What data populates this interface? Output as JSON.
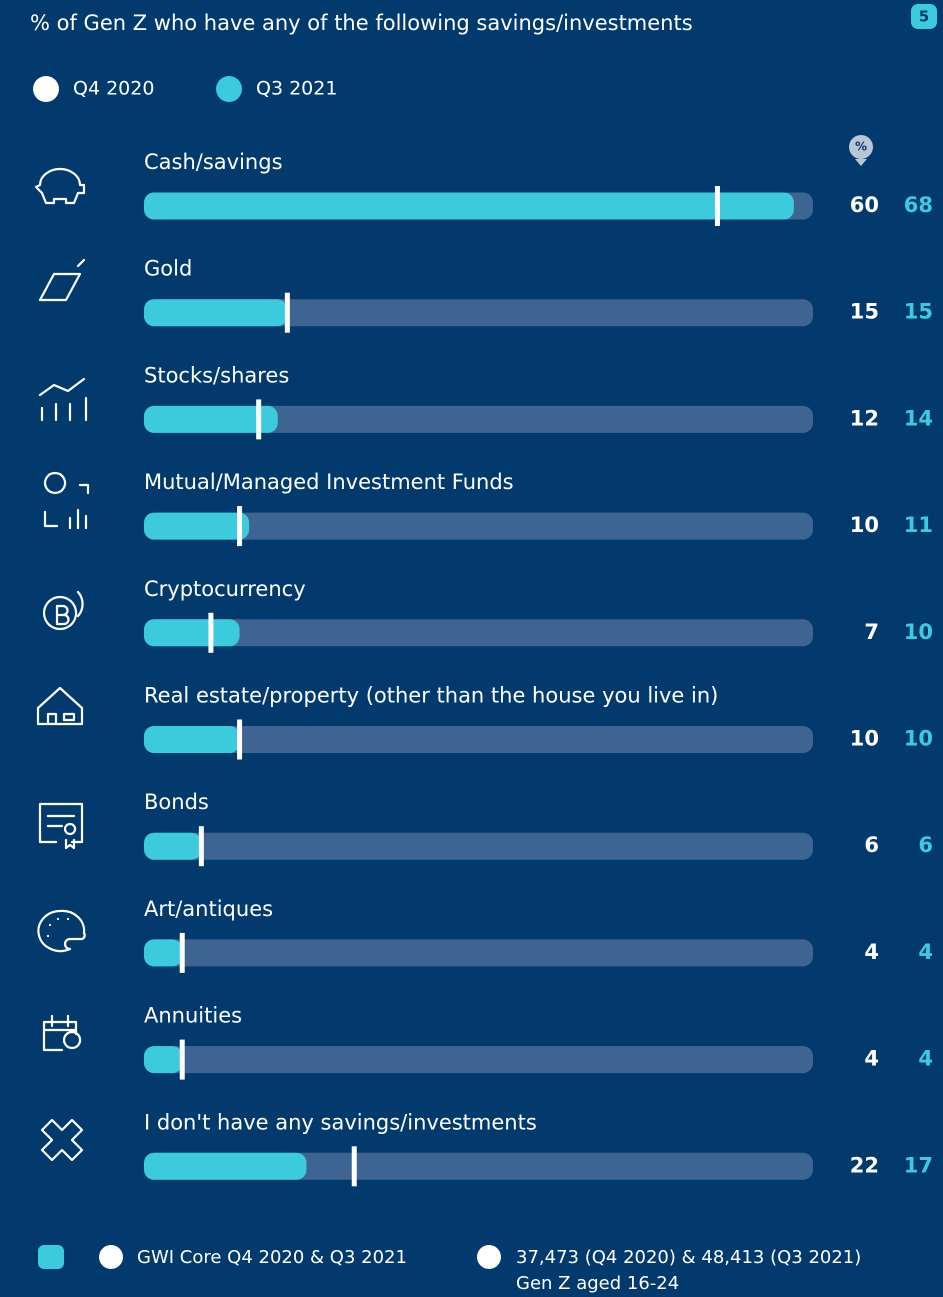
{
  "chart_data": {
    "type": "bar",
    "title": "% of Gen Z who have any of the following savings/investments",
    "categories": [
      "Cash/savings",
      "Gold",
      "Stocks/shares",
      "Mutual/Managed Investment Funds",
      "Cryptocurrency",
      "Real estate/property (other than the house you live in)",
      "Bonds",
      "Art/antiques",
      "Annuities",
      "I don't have any savings/investments"
    ],
    "series": [
      {
        "name": "Q4 2020",
        "color": "#ffffff",
        "values": [
          60,
          15,
          12,
          10,
          7,
          10,
          6,
          4,
          4,
          22
        ]
      },
      {
        "name": "Q3 2021",
        "color": "#3ccbdc",
        "values": [
          68,
          15,
          14,
          11,
          10,
          10,
          6,
          4,
          4,
          17
        ]
      }
    ],
    "xlim": [
      0,
      70
    ],
    "unit_badge": "%"
  },
  "page_number": "5",
  "footer": {
    "source": "GWI Core Q4 2020 & Q3 2021",
    "sample": [
      "37,473 (Q4 2020) & 48,413 (Q3 2021)",
      "Gen Z aged 16-24"
    ]
  }
}
